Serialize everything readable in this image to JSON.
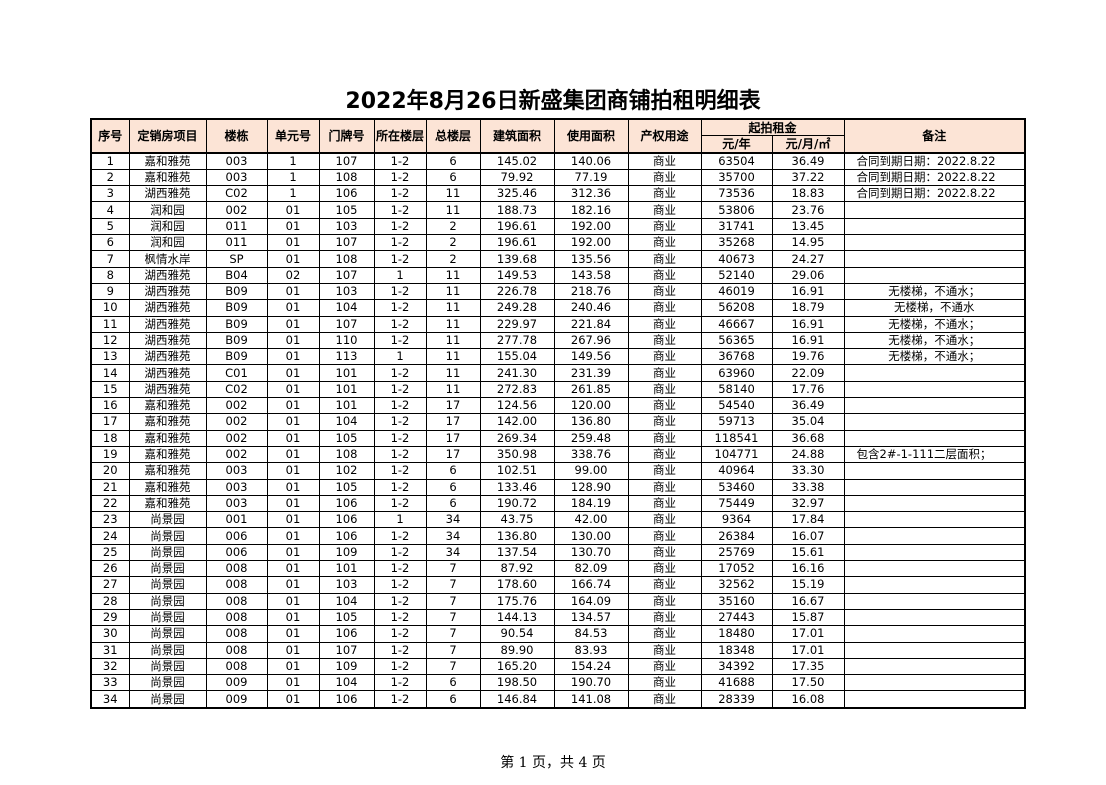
{
  "title": "2022年8月26日新盛集团商铺拍租明细表",
  "headers": {
    "seq": "序号",
    "project": "定销房项目",
    "building": "楼栋",
    "unit": "单元号",
    "door": "门牌号",
    "floor": "所在楼层",
    "total_floors": "总楼层",
    "build_area": "建筑面积",
    "use_area": "使用面积",
    "usage": "产权用途",
    "rent_group": "起拍租金",
    "rent_year": "元/年",
    "rent_month": "元/月/㎡",
    "remark": "备注"
  },
  "rows": [
    [
      "1",
      "嘉和雅苑",
      "003",
      "1",
      "107",
      "1-2",
      "6",
      "145.02",
      "140.06",
      "商业",
      "63504",
      "36.49",
      "合同到期日期：2022.8.22"
    ],
    [
      "2",
      "嘉和雅苑",
      "003",
      "1",
      "108",
      "1-2",
      "6",
      "79.92",
      "77.19",
      "商业",
      "35700",
      "37.22",
      "合同到期日期：2022.8.22"
    ],
    [
      "3",
      "湖西雅苑",
      "C02",
      "1",
      "106",
      "1-2",
      "11",
      "325.46",
      "312.36",
      "商业",
      "73536",
      "18.83",
      "合同到期日期：2022.8.22"
    ],
    [
      "4",
      "润和园",
      "002",
      "01",
      "105",
      "1-2",
      "11",
      "188.73",
      "182.16",
      "商业",
      "53806",
      "23.76",
      ""
    ],
    [
      "5",
      "润和园",
      "011",
      "01",
      "103",
      "1-2",
      "2",
      "196.61",
      "192.00",
      "商业",
      "31741",
      "13.45",
      ""
    ],
    [
      "6",
      "润和园",
      "011",
      "01",
      "107",
      "1-2",
      "2",
      "196.61",
      "192.00",
      "商业",
      "35268",
      "14.95",
      ""
    ],
    [
      "7",
      "枫情水岸",
      "SP",
      "01",
      "108",
      "1-2",
      "2",
      "139.68",
      "135.56",
      "商业",
      "40673",
      "24.27",
      ""
    ],
    [
      "8",
      "湖西雅苑",
      "B04",
      "02",
      "107",
      "1",
      "11",
      "149.53",
      "143.58",
      "商业",
      "52140",
      "29.06",
      ""
    ],
    [
      "9",
      "湖西雅苑",
      "B09",
      "01",
      "103",
      "1-2",
      "11",
      "226.78",
      "218.76",
      "商业",
      "46019",
      "16.91",
      "无楼梯，不通水；"
    ],
    [
      "10",
      "湖西雅苑",
      "B09",
      "01",
      "104",
      "1-2",
      "11",
      "249.28",
      "240.46",
      "商业",
      "56208",
      "18.79",
      "无楼梯，不通水"
    ],
    [
      "11",
      "湖西雅苑",
      "B09",
      "01",
      "107",
      "1-2",
      "11",
      "229.97",
      "221.84",
      "商业",
      "46667",
      "16.91",
      "无楼梯，不通水；"
    ],
    [
      "12",
      "湖西雅苑",
      "B09",
      "01",
      "110",
      "1-2",
      "11",
      "277.78",
      "267.96",
      "商业",
      "56365",
      "16.91",
      "无楼梯，不通水；"
    ],
    [
      "13",
      "湖西雅苑",
      "B09",
      "01",
      "113",
      "1",
      "11",
      "155.04",
      "149.56",
      "商业",
      "36768",
      "19.76",
      "无楼梯，不通水；"
    ],
    [
      "14",
      "湖西雅苑",
      "C01",
      "01",
      "101",
      "1-2",
      "11",
      "241.30",
      "231.39",
      "商业",
      "63960",
      "22.09",
      ""
    ],
    [
      "15",
      "湖西雅苑",
      "C02",
      "01",
      "101",
      "1-2",
      "11",
      "272.83",
      "261.85",
      "商业",
      "58140",
      "17.76",
      ""
    ],
    [
      "16",
      "嘉和雅苑",
      "002",
      "01",
      "101",
      "1-2",
      "17",
      "124.56",
      "120.00",
      "商业",
      "54540",
      "36.49",
      ""
    ],
    [
      "17",
      "嘉和雅苑",
      "002",
      "01",
      "104",
      "1-2",
      "17",
      "142.00",
      "136.80",
      "商业",
      "59713",
      "35.04",
      ""
    ],
    [
      "18",
      "嘉和雅苑",
      "002",
      "01",
      "105",
      "1-2",
      "17",
      "269.34",
      "259.48",
      "商业",
      "118541",
      "36.68",
      ""
    ],
    [
      "19",
      "嘉和雅苑",
      "002",
      "01",
      "108",
      "1-2",
      "17",
      "350.98",
      "338.76",
      "商业",
      "104771",
      "24.88",
      "包含2#-1-111二层面积；"
    ],
    [
      "20",
      "嘉和雅苑",
      "003",
      "01",
      "102",
      "1-2",
      "6",
      "102.51",
      "99.00",
      "商业",
      "40964",
      "33.30",
      ""
    ],
    [
      "21",
      "嘉和雅苑",
      "003",
      "01",
      "105",
      "1-2",
      "6",
      "133.46",
      "128.90",
      "商业",
      "53460",
      "33.38",
      ""
    ],
    [
      "22",
      "嘉和雅苑",
      "003",
      "01",
      "106",
      "1-2",
      "6",
      "190.72",
      "184.19",
      "商业",
      "75449",
      "32.97",
      ""
    ],
    [
      "23",
      "尚景园",
      "001",
      "01",
      "106",
      "1",
      "34",
      "43.75",
      "42.00",
      "商业",
      "9364",
      "17.84",
      ""
    ],
    [
      "24",
      "尚景园",
      "006",
      "01",
      "106",
      "1-2",
      "34",
      "136.80",
      "130.00",
      "商业",
      "26384",
      "16.07",
      ""
    ],
    [
      "25",
      "尚景园",
      "006",
      "01",
      "109",
      "1-2",
      "34",
      "137.54",
      "130.70",
      "商业",
      "25769",
      "15.61",
      ""
    ],
    [
      "26",
      "尚景园",
      "008",
      "01",
      "101",
      "1-2",
      "7",
      "87.92",
      "82.09",
      "商业",
      "17052",
      "16.16",
      ""
    ],
    [
      "27",
      "尚景园",
      "008",
      "01",
      "103",
      "1-2",
      "7",
      "178.60",
      "166.74",
      "商业",
      "32562",
      "15.19",
      ""
    ],
    [
      "28",
      "尚景园",
      "008",
      "01",
      "104",
      "1-2",
      "7",
      "175.76",
      "164.09",
      "商业",
      "35160",
      "16.67",
      ""
    ],
    [
      "29",
      "尚景园",
      "008",
      "01",
      "105",
      "1-2",
      "7",
      "144.13",
      "134.57",
      "商业",
      "27443",
      "15.87",
      ""
    ],
    [
      "30",
      "尚景园",
      "008",
      "01",
      "106",
      "1-2",
      "7",
      "90.54",
      "84.53",
      "商业",
      "18480",
      "17.01",
      ""
    ],
    [
      "31",
      "尚景园",
      "008",
      "01",
      "107",
      "1-2",
      "7",
      "89.90",
      "83.93",
      "商业",
      "18348",
      "17.01",
      ""
    ],
    [
      "32",
      "尚景园",
      "008",
      "01",
      "109",
      "1-2",
      "7",
      "165.20",
      "154.24",
      "商业",
      "34392",
      "17.35",
      ""
    ],
    [
      "33",
      "尚景园",
      "009",
      "01",
      "104",
      "1-2",
      "6",
      "198.50",
      "190.70",
      "商业",
      "41688",
      "17.50",
      ""
    ],
    [
      "34",
      "尚景园",
      "009",
      "01",
      "106",
      "1-2",
      "6",
      "146.84",
      "141.08",
      "商业",
      "28339",
      "16.08",
      ""
    ]
  ],
  "footer": "第 1 页，共 4 页",
  "colors": {
    "header_bg": "#fce4d6"
  }
}
